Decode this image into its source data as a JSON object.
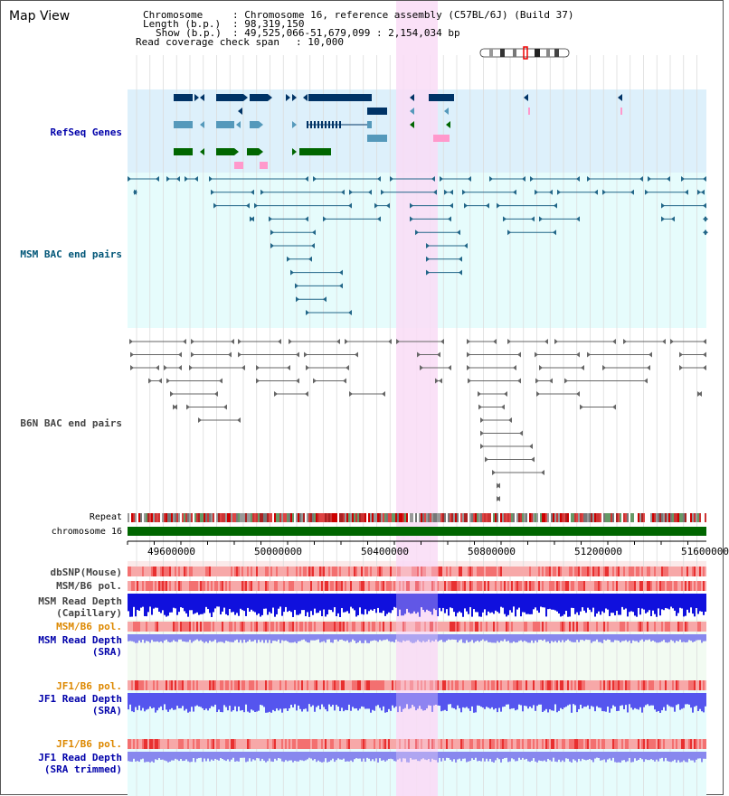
{
  "view_title": "Map View",
  "info": {
    "chromosome_key": "Chromosome",
    "chromosome_val": ": Chromosome 16, reference assembly (C57BL/6J) (Build 37)",
    "length_key": "Length (b.p.)",
    "length_val": ": 98,319,150",
    "show_key": "Show (b.p.)",
    "show_val": ": 49,525,066-51,679,099 : 2,154,034 bp",
    "span_key": "Read coverage check span",
    "span_val": ": 10,000"
  },
  "tracks": {
    "refseq": "RefSeq Genes",
    "msm_bac": "MSM BAC end pairs",
    "b6n_bac": "B6N BAC end pairs",
    "repeat": "Repeat",
    "chromosome": "chromosome 16",
    "dbsnp": "dbSNP(Mouse)",
    "msm_b6_pol": "MSM/B6 pol.",
    "msm_depth_cap": "MSM Read Depth\n(Capillary)",
    "msm_b6_pol2": "MSM/B6 pol.",
    "msm_depth_sra": "MSM Read Depth\n(SRA)",
    "jf1_b6_pol": "JF1/B6 pol.",
    "jf1_depth_sra": "JF1 Read Depth\n(SRA)",
    "jf1_b6_pol2": "JF1/B6 pol.",
    "jf1_depth_trim": "JF1 Read Depth\n(SRA trimmed)"
  },
  "axis_ticks": [
    "49600000",
    "50000000",
    "50400000",
    "50800000",
    "51200000",
    "51600000"
  ],
  "colors": {
    "refseq_bg": "#ddf0fb",
    "msm_bg": "#e6fcfc",
    "highlight": "#f9dcf6",
    "navy": "#003366",
    "steel": "#5599bb",
    "green": "#006600",
    "pink": "#ff99cc",
    "teal": "#226688",
    "gray": "#666666",
    "label_blue": "#0000aa",
    "label_teal": "#005577",
    "label_orange": "#dd8800"
  }
}
